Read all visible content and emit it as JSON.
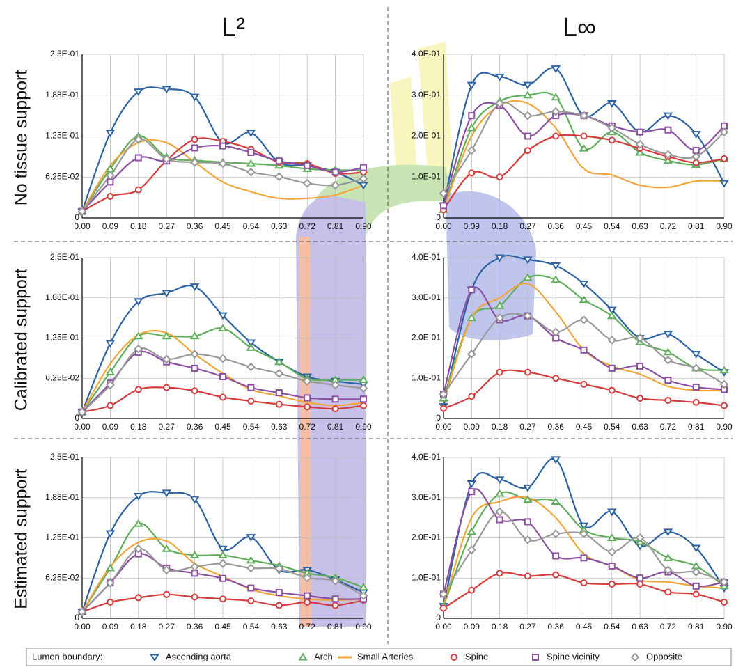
{
  "columns": [
    "L²",
    "L∞"
  ],
  "rows": [
    "No tissue support",
    "Calibrated support",
    "Estimated support"
  ],
  "legend_title": "Lumen boundary:",
  "chart_data": [
    {
      "type": "line",
      "x": [
        0,
        0.09,
        0.18,
        0.27,
        0.36,
        0.45,
        0.54,
        0.63,
        0.72,
        0.81,
        0.9
      ],
      "xlim": [
        0,
        0.9
      ],
      "xticks": [
        {
          "value": 0,
          "label": "0.00"
        },
        {
          "value": 0.09,
          "label": "0.09"
        },
        {
          "value": 0.18,
          "label": "0.18"
        },
        {
          "value": 0.27,
          "label": "0.27"
        },
        {
          "value": 0.36,
          "label": "0.36"
        },
        {
          "value": 0.45,
          "label": "0.45"
        },
        {
          "value": 0.54,
          "label": "0.54"
        },
        {
          "value": 0.63,
          "label": "0.63"
        },
        {
          "value": 0.72,
          "label": "0.72"
        },
        {
          "value": 0.81,
          "label": "0.81"
        },
        {
          "value": 0.9,
          "label": "0.90"
        }
      ],
      "ylim": [
        0,
        0.25
      ],
      "yticks": [
        0,
        {
          "value": 0.0625,
          "label": "6.25E-02"
        },
        {
          "value": 0.125,
          "label": "1.25E-01"
        },
        {
          "value": 0.1875,
          "label": "1.88E-01"
        },
        {
          "value": 0.25,
          "label": "2.5E-01"
        }
      ],
      "grid": true,
      "series": [
        {
          "name": "Ascending aorta",
          "color": "#2d62a3",
          "marker": "triangle-down",
          "values": [
            0.01,
            0.13,
            0.193,
            0.197,
            0.185,
            0.115,
            0.13,
            0.085,
            0.08,
            0.07,
            0.05
          ]
        },
        {
          "name": "Arch",
          "color": "#5fae5a",
          "marker": "triangle-up",
          "values": [
            0.01,
            0.075,
            0.125,
            0.093,
            0.088,
            0.085,
            0.083,
            0.08,
            0.075,
            0.073,
            0.073
          ]
        },
        {
          "name": "Small Arteries",
          "color": "#f2a53a",
          "marker": "none",
          "values": [
            0.01,
            0.08,
            0.115,
            0.115,
            0.085,
            0.055,
            0.04,
            0.03,
            0.03,
            0.035,
            0.05
          ]
        },
        {
          "name": "Spine",
          "color": "#d63c3c",
          "marker": "circle",
          "values": [
            0.01,
            0.033,
            0.043,
            0.088,
            0.12,
            0.117,
            0.105,
            0.085,
            0.083,
            0.068,
            0.07
          ]
        },
        {
          "name": "Spine vicinity",
          "color": "#8c50a2",
          "marker": "square",
          "values": [
            0.01,
            0.055,
            0.092,
            0.087,
            0.107,
            0.11,
            0.1,
            0.087,
            0.08,
            0.07,
            0.077
          ]
        },
        {
          "name": "Opposite",
          "color": "#999999",
          "marker": "diamond",
          "values": [
            0.01,
            0.065,
            0.12,
            0.09,
            0.085,
            0.083,
            0.07,
            0.063,
            0.053,
            0.05,
            0.06
          ]
        }
      ]
    },
    {
      "type": "line",
      "x": [
        0,
        0.09,
        0.18,
        0.27,
        0.36,
        0.45,
        0.54,
        0.63,
        0.72,
        0.81,
        0.9
      ],
      "xlim": [
        0,
        0.9
      ],
      "xticks": [
        {
          "value": 0,
          "label": "0.00"
        },
        {
          "value": 0.09,
          "label": "0.09"
        },
        {
          "value": 0.18,
          "label": "0.18"
        },
        {
          "value": 0.27,
          "label": "0.27"
        },
        {
          "value": 0.36,
          "label": "0.36"
        },
        {
          "value": 0.45,
          "label": "0.45"
        },
        {
          "value": 0.54,
          "label": "0.54"
        },
        {
          "value": 0.63,
          "label": "0.63"
        },
        {
          "value": 0.72,
          "label": "0.72"
        },
        {
          "value": 0.81,
          "label": "0.81"
        },
        {
          "value": 0.9,
          "label": "0.90"
        }
      ],
      "ylim": [
        0,
        0.4
      ],
      "yticks": [
        0,
        {
          "value": 0.1,
          "label": "1.0E-01"
        },
        {
          "value": 0.2,
          "label": "2.0E-01"
        },
        {
          "value": 0.3,
          "label": "3.0E-01"
        },
        {
          "value": 0.4,
          "label": "4.0E-01"
        }
      ],
      "grid": true,
      "series": [
        {
          "values": [
            0.03,
            0.325,
            0.345,
            0.325,
            0.365,
            0.25,
            0.28,
            0.21,
            0.25,
            0.205,
            0.085
          ]
        },
        {
          "values": [
            0.02,
            0.22,
            0.285,
            0.3,
            0.295,
            0.17,
            0.21,
            0.16,
            0.14,
            0.13,
            0.145
          ]
        },
        {
          "values": [
            0.02,
            0.2,
            0.275,
            0.28,
            0.22,
            0.12,
            0.105,
            0.08,
            0.075,
            0.09,
            0.09
          ]
        },
        {
          "values": [
            0.02,
            0.11,
            0.1,
            0.165,
            0.2,
            0.2,
            0.19,
            0.17,
            0.15,
            0.135,
            0.145
          ]
        },
        {
          "values": [
            0.03,
            0.25,
            0.275,
            0.2,
            0.25,
            0.25,
            0.225,
            0.21,
            0.215,
            0.165,
            0.225
          ]
        },
        {
          "values": [
            0.06,
            0.165,
            0.28,
            0.25,
            0.26,
            0.25,
            0.22,
            0.18,
            0.155,
            0.15,
            0.21
          ]
        }
      ]
    },
    {
      "type": "line",
      "x": [
        0,
        0.09,
        0.18,
        0.27,
        0.36,
        0.45,
        0.54,
        0.63,
        0.72,
        0.81,
        0.9
      ],
      "xlim": [
        0,
        0.9
      ],
      "xticks": [
        {
          "value": 0,
          "label": "0.00"
        },
        {
          "value": 0.09,
          "label": "0.09"
        },
        {
          "value": 0.18,
          "label": "0.18"
        },
        {
          "value": 0.27,
          "label": "0.27"
        },
        {
          "value": 0.36,
          "label": "0.36"
        },
        {
          "value": 0.45,
          "label": "0.45"
        },
        {
          "value": 0.54,
          "label": "0.54"
        },
        {
          "value": 0.63,
          "label": "0.63"
        },
        {
          "value": 0.72,
          "label": "0.72"
        },
        {
          "value": 0.81,
          "label": "0.81"
        },
        {
          "value": 0.9,
          "label": "0.90"
        }
      ],
      "ylim": [
        0,
        0.25
      ],
      "yticks": [
        0,
        {
          "value": 0.0625,
          "label": "6.25E-02"
        },
        {
          "value": 0.125,
          "label": "1.25E-01"
        },
        {
          "value": 0.1875,
          "label": "1.88E-01"
        },
        {
          "value": 0.25,
          "label": "2.5E-01"
        }
      ],
      "grid": true,
      "series": [
        {
          "values": [
            0.01,
            0.117,
            0.182,
            0.195,
            0.205,
            0.16,
            0.118,
            0.088,
            0.065,
            0.058,
            0.053
          ]
        },
        {
          "values": [
            0.01,
            0.072,
            0.128,
            0.128,
            0.128,
            0.14,
            0.11,
            0.088,
            0.062,
            0.06,
            0.06
          ]
        },
        {
          "values": [
            0.01,
            0.085,
            0.13,
            0.133,
            0.1,
            0.07,
            0.045,
            0.035,
            0.025,
            0.02,
            0.025
          ]
        },
        {
          "values": [
            0.01,
            0.02,
            0.045,
            0.048,
            0.043,
            0.033,
            0.027,
            0.022,
            0.018,
            0.015,
            0.02
          ]
        },
        {
          "values": [
            0.01,
            0.055,
            0.103,
            0.088,
            0.078,
            0.065,
            0.048,
            0.04,
            0.032,
            0.03,
            0.03
          ]
        },
        {
          "values": [
            0.01,
            0.052,
            0.108,
            0.092,
            0.1,
            0.093,
            0.08,
            0.07,
            0.058,
            0.052,
            0.047
          ]
        }
      ]
    },
    {
      "type": "line",
      "x": [
        0,
        0.09,
        0.18,
        0.27,
        0.36,
        0.45,
        0.54,
        0.63,
        0.72,
        0.81,
        0.9
      ],
      "xlim": [
        0,
        0.9
      ],
      "xticks": [
        {
          "value": 0,
          "label": "0.00"
        },
        {
          "value": 0.09,
          "label": "0.09"
        },
        {
          "value": 0.18,
          "label": "0.18"
        },
        {
          "value": 0.27,
          "label": "0.27"
        },
        {
          "value": 0.36,
          "label": "0.36"
        },
        {
          "value": 0.45,
          "label": "0.45"
        },
        {
          "value": 0.54,
          "label": "0.54"
        },
        {
          "value": 0.63,
          "label": "0.63"
        },
        {
          "value": 0.72,
          "label": "0.72"
        },
        {
          "value": 0.81,
          "label": "0.81"
        },
        {
          "value": 0.9,
          "label": "0.90"
        }
      ],
      "ylim": [
        0,
        0.4
      ],
      "yticks": [
        0,
        {
          "value": 0.1,
          "label": "1.0E-01"
        },
        {
          "value": 0.2,
          "label": "2.0E-01"
        },
        {
          "value": 0.3,
          "label": "3.0E-01"
        },
        {
          "value": 0.4,
          "label": "4.0E-01"
        }
      ],
      "grid": true,
      "series": [
        {
          "values": [
            0.03,
            0.32,
            0.4,
            0.395,
            0.38,
            0.335,
            0.27,
            0.2,
            0.21,
            0.16,
            0.115
          ]
        },
        {
          "values": [
            0.05,
            0.25,
            0.28,
            0.35,
            0.345,
            0.295,
            0.255,
            0.19,
            0.165,
            0.125,
            0.12
          ]
        },
        {
          "values": [
            0.04,
            0.25,
            0.3,
            0.335,
            0.265,
            0.17,
            0.13,
            0.11,
            0.08,
            0.07,
            0.07
          ]
        },
        {
          "values": [
            0.025,
            0.055,
            0.115,
            0.115,
            0.1,
            0.085,
            0.07,
            0.05,
            0.045,
            0.04,
            0.032
          ]
        },
        {
          "values": [
            0.06,
            0.32,
            0.245,
            0.255,
            0.2,
            0.17,
            0.125,
            0.13,
            0.095,
            0.078,
            0.072
          ]
        },
        {
          "values": [
            0.06,
            0.16,
            0.25,
            0.255,
            0.215,
            0.245,
            0.195,
            0.2,
            0.145,
            0.125,
            0.085
          ]
        }
      ]
    },
    {
      "type": "line",
      "x": [
        0,
        0.09,
        0.18,
        0.27,
        0.36,
        0.45,
        0.54,
        0.63,
        0.72,
        0.81,
        0.9
      ],
      "xlim": [
        0,
        0.9
      ],
      "xticks": [
        {
          "value": 0,
          "label": "0.00"
        },
        {
          "value": 0.09,
          "label": "0.09"
        },
        {
          "value": 0.18,
          "label": "0.18"
        },
        {
          "value": 0.27,
          "label": "0.27"
        },
        {
          "value": 0.36,
          "label": "0.36"
        },
        {
          "value": 0.45,
          "label": "0.45"
        },
        {
          "value": 0.54,
          "label": "0.54"
        },
        {
          "value": 0.63,
          "label": "0.63"
        },
        {
          "value": 0.72,
          "label": "0.72"
        },
        {
          "value": 0.81,
          "label": "0.81"
        },
        {
          "value": 0.9,
          "label": "0.90"
        }
      ],
      "ylim": [
        0,
        0.25
      ],
      "yticks": [
        0,
        {
          "value": 0.0625,
          "label": "6.25E-02"
        },
        {
          "value": 0.125,
          "label": "1.25E-01"
        },
        {
          "value": 0.1875,
          "label": "1.88E-01"
        },
        {
          "value": 0.25,
          "label": "2.5E-01"
        }
      ],
      "grid": true,
      "series": [
        {
          "values": [
            0.01,
            0.132,
            0.19,
            0.195,
            0.185,
            0.108,
            0.126,
            0.075,
            0.075,
            0.06,
            0.04
          ]
        },
        {
          "values": [
            0.01,
            0.078,
            0.147,
            0.108,
            0.098,
            0.098,
            0.09,
            0.082,
            0.07,
            0.063,
            0.048
          ]
        },
        {
          "values": [
            0.01,
            0.08,
            0.118,
            0.12,
            0.085,
            0.065,
            0.045,
            0.035,
            0.03,
            0.028,
            0.03
          ]
        },
        {
          "values": [
            0.01,
            0.025,
            0.032,
            0.037,
            0.033,
            0.03,
            0.027,
            0.02,
            0.025,
            0.02,
            0.028
          ]
        },
        {
          "values": [
            0.01,
            0.055,
            0.1,
            0.078,
            0.07,
            0.062,
            0.047,
            0.04,
            0.035,
            0.03,
            0.03
          ]
        },
        {
          "values": [
            0.01,
            0.055,
            0.108,
            0.075,
            0.08,
            0.085,
            0.078,
            0.077,
            0.063,
            0.058,
            0.035
          ]
        }
      ]
    },
    {
      "type": "line",
      "x": [
        0,
        0.09,
        0.18,
        0.27,
        0.36,
        0.45,
        0.54,
        0.63,
        0.72,
        0.81,
        0.9
      ],
      "xlim": [
        0,
        0.9
      ],
      "xticks": [
        {
          "value": 0,
          "label": "0.00"
        },
        {
          "value": 0.09,
          "label": "0.09"
        },
        {
          "value": 0.18,
          "label": "0.18"
        },
        {
          "value": 0.27,
          "label": "0.27"
        },
        {
          "value": 0.36,
          "label": "0.36"
        },
        {
          "value": 0.45,
          "label": "0.45"
        },
        {
          "value": 0.54,
          "label": "0.54"
        },
        {
          "value": 0.63,
          "label": "0.63"
        },
        {
          "value": 0.72,
          "label": "0.72"
        },
        {
          "value": 0.81,
          "label": "0.81"
        },
        {
          "value": 0.9,
          "label": "0.90"
        }
      ],
      "ylim": [
        0,
        0.4
      ],
      "yticks": [
        0,
        {
          "value": 0.1,
          "label": "1.0E-01"
        },
        {
          "value": 0.2,
          "label": "2.0E-01"
        },
        {
          "value": 0.3,
          "label": "3.0E-01"
        },
        {
          "value": 0.4,
          "label": "4.0E-01"
        }
      ],
      "grid": true,
      "series": [
        {
          "values": [
            0.03,
            0.335,
            0.345,
            0.325,
            0.395,
            0.23,
            0.265,
            0.18,
            0.215,
            0.175,
            0.075
          ]
        },
        {
          "values": [
            0.03,
            0.215,
            0.31,
            0.295,
            0.29,
            0.22,
            0.2,
            0.19,
            0.15,
            0.13,
            0.08
          ]
        },
        {
          "values": [
            0.03,
            0.25,
            0.29,
            0.3,
            0.25,
            0.16,
            0.13,
            0.095,
            0.09,
            0.08,
            0.075
          ]
        },
        {
          "values": [
            0.025,
            0.07,
            0.112,
            0.105,
            0.108,
            0.088,
            0.085,
            0.085,
            0.065,
            0.06,
            0.04
          ]
        },
        {
          "values": [
            0.06,
            0.315,
            0.245,
            0.24,
            0.155,
            0.15,
            0.13,
            0.1,
            0.115,
            0.08,
            0.09
          ]
        },
        {
          "values": [
            0.06,
            0.17,
            0.265,
            0.195,
            0.21,
            0.21,
            0.165,
            0.2,
            0.12,
            0.115,
            0.09
          ]
        }
      ]
    }
  ]
}
